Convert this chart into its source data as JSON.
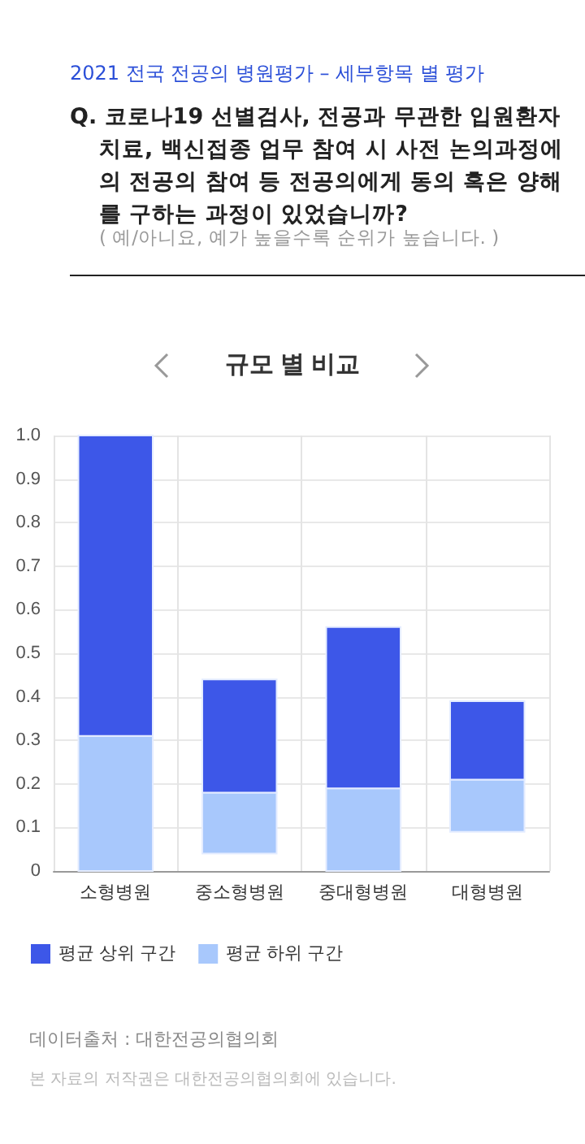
{
  "chart_data": {
    "type": "bar",
    "title": "규모 별 비교",
    "annotations": [
      "2021 전국 전공의 병원평가 – 세부항목 별 평가",
      "Q. 코로나19 선별검사, 전공과 무관한 입원환자 치료, 백신접종 업무 참여 시 사전 논의과정에의 전공의 참여 등 전공의에게 동의 혹은 양해를 구하는 과정이 있었습니까?",
      "( 예/아니요, 예가 높을수록 순위가 높습니다. )",
      "데이터출처 : 대한전공의협의회",
      "본 자료의 저작권은 대한전공의협의회에 있습니다."
    ],
    "categories": [
      "소형병원",
      "중소형병원",
      "중대형병원",
      "대형병원"
    ],
    "series": [
      {
        "name": "평균 하위 구간",
        "color": "#a8c8fc",
        "base": [
          0,
          0.04,
          0,
          0.09
        ],
        "values": [
          0.31,
          0.14,
          0.19,
          0.12
        ]
      },
      {
        "name": "평균 상위 구간",
        "color": "#3d57e8",
        "base": [
          0.31,
          0.18,
          0.19,
          0.21
        ],
        "values": [
          0.69,
          0.26,
          0.37,
          0.18
        ]
      }
    ],
    "ylim": [
      0,
      1
    ],
    "yticks": [
      0,
      0.1,
      0.2,
      0.3,
      0.4,
      0.5,
      0.6,
      0.7,
      0.8,
      0.9,
      {
        "value": 1,
        "label": "1.0"
      }
    ],
    "grid": true,
    "legend": "bottom left"
  }
}
